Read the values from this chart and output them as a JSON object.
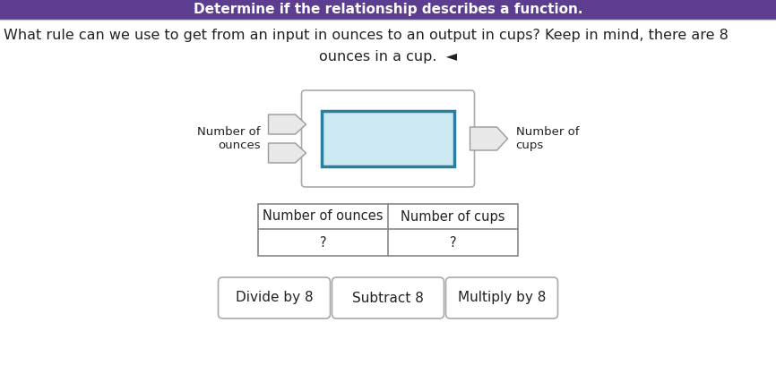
{
  "title_bar_text": "Determine if the relationship describes a function.",
  "title_bar_color": "#5c3d8f",
  "title_bar_text_color": "#ffffff",
  "bg_color": "#f5f5f5",
  "question_text_line1": "What rule can we use to get from an input in ounces to an output in cups? Keep in mind, there are 8",
  "question_text_line2": "ounces in a cup.  ◄︎",
  "input_label": "Number of\nounces",
  "output_label": "Number of\ncups",
  "box_fill": "#cce8f0",
  "box_border": "#2a7fa0",
  "outer_box_fill": "#ffffff",
  "outer_box_border": "#aaaaaa",
  "table_col1": "Number of ounces",
  "table_col2": "Number of cups",
  "table_val1": "?",
  "table_val2": "?",
  "table_border": "#888888",
  "table_fill": "#ffffff",
  "btn1": "Divide by 8",
  "btn2": "Subtract 8",
  "btn3": "Multiply by 8",
  "btn_fill": "#ffffff",
  "btn_border": "#aaaaaa",
  "text_color": "#222222",
  "font_size_question": 11.5,
  "font_size_labels": 9.5,
  "font_size_table": 10.5,
  "font_size_buttons": 11
}
